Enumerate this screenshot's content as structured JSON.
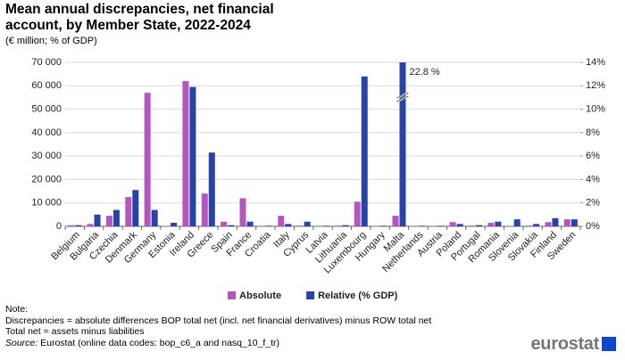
{
  "chart_data": {
    "type": "bar",
    "title": "Mean annual discrepancies, net financial account, by Member State, 2022-2024",
    "subtitle": "(€ million; % of GDP)",
    "categories": [
      "Belgium",
      "Bulgaria",
      "Czechia",
      "Denmark",
      "Germany",
      "Estonia",
      "Ireland",
      "Greece",
      "Spain",
      "France",
      "Croatia",
      "Italy",
      "Cyprus",
      "Latvia",
      "Lithuania",
      "Luxembourg",
      "Hungary",
      "Malta",
      "Netherlands",
      "Austria",
      "Poland",
      "Portugal",
      "Romania",
      "Slovenia",
      "Slovakia",
      "Finland",
      "Sweden"
    ],
    "series": [
      {
        "name": "Absolute",
        "color": "#b656bd",
        "values": [
          500,
          1000,
          4500,
          12500,
          57000,
          200,
          62000,
          14000,
          2000,
          12000,
          100,
          4500,
          300,
          100,
          300,
          10500,
          100,
          4500,
          100,
          100,
          1800,
          300,
          1500,
          200,
          300,
          1800,
          3000
        ]
      },
      {
        "name": "Relative (% GDP)",
        "color": "#2644a7",
        "axis": "y2",
        "values": [
          0.1,
          1.0,
          1.4,
          3.1,
          1.4,
          0.3,
          11.9,
          6.3,
          0.1,
          0.4,
          0.05,
          0.2,
          0.4,
          0.05,
          0.1,
          12.8,
          0.05,
          22.8,
          0.05,
          0.05,
          0.2,
          0.1,
          0.4,
          0.6,
          0.2,
          0.7,
          0.6
        ],
        "value_labels": [
          null,
          null,
          null,
          null,
          null,
          null,
          null,
          null,
          null,
          null,
          null,
          null,
          null,
          null,
          null,
          null,
          null,
          "22.8 %",
          null,
          null,
          null,
          null,
          null,
          null,
          null,
          null,
          null
        ]
      }
    ],
    "ylim": [
      0,
      70000
    ],
    "yticks": [
      0,
      {
        "value": 10000,
        "label": "10 000"
      },
      {
        "value": 20000,
        "label": "20 000"
      },
      {
        "value": 30000,
        "label": "30 000"
      },
      {
        "value": 40000,
        "label": "40 000"
      },
      {
        "value": 50000,
        "label": "50 000"
      },
      {
        "value": 60000,
        "label": "60 000"
      },
      {
        "value": 70000,
        "label": "70 000"
      }
    ],
    "y2lim": [
      0,
      14
    ],
    "y2ticks": [
      {
        "value": 0,
        "label": "0%"
      },
      {
        "value": 2,
        "label": "2%"
      },
      {
        "value": 4,
        "label": "4%"
      },
      {
        "value": 6,
        "label": "6%"
      },
      {
        "value": 8,
        "label": "8%"
      },
      {
        "value": 10,
        "label": "10%"
      },
      {
        "value": 12,
        "label": "12%"
      },
      {
        "value": 14,
        "label": "14%"
      }
    ],
    "grid": true,
    "legend": "bottom",
    "notes": [
      "Note:",
      "Discrepancies = absolute differences BOP total net (incl. net financial derivatives) minus ROW total net",
      "Total net = assets minus liabilities"
    ],
    "source_label": "Source:",
    "source": "Eurostat (online data codes: bop_c6_a and nasq_10_f_tr)",
    "logo": "eurostat"
  }
}
